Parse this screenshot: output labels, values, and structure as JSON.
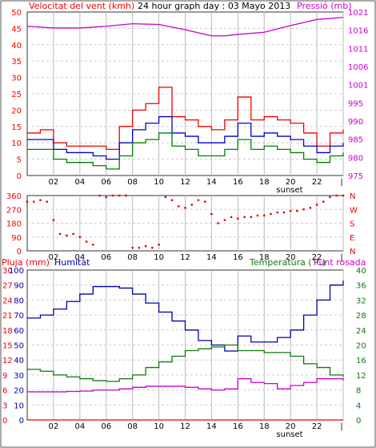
{
  "header": {
    "wind_label": "Velocitat del vent (kmh)",
    "title": "24 hour graph day : 03 Mayo 2013",
    "pressure_label": "Pressió (mb)"
  },
  "lower_header": {
    "rain_label": "Pluja (mm)",
    "humidity_label": "Humitat",
    "temp_label": "Temperatura (°C)",
    "dew_label": "Punt rosada"
  },
  "colors": {
    "wind_gust": "#ee0000",
    "wind_avg": "#0000cc",
    "wind_min": "#008000",
    "pressure": "#cc00cc",
    "direction": "#dd0000",
    "humidity": "#0000aa",
    "temperature": "#117711",
    "dewpoint": "#cc00cc",
    "rain": "#ee0000"
  },
  "chart_data": [
    {
      "type": "line",
      "x_ticks": [
        "02",
        "04",
        "06",
        "08",
        "10",
        "12",
        "14",
        "16",
        "18",
        "20",
        "22",
        "|"
      ],
      "x_annotation": "sunset",
      "left_axis": {
        "range": [
          0,
          50
        ],
        "ticks": [
          "0",
          "5",
          "10",
          "15",
          "20",
          "25",
          "30",
          "35",
          "40",
          "45",
          "50"
        ]
      },
      "right_axis": {
        "range": [
          975,
          1021
        ],
        "ticks": [
          "975",
          "980",
          "985",
          "990",
          "995",
          "1001",
          "1006",
          "1011",
          "1016",
          "1021"
        ]
      },
      "series": [
        {
          "key": "gust",
          "axis": "left",
          "hours": [
            0,
            1,
            2,
            3,
            4,
            5,
            6,
            7,
            8,
            9,
            10,
            11,
            12,
            13,
            14,
            15,
            16,
            17,
            18,
            19,
            20,
            21,
            22,
            23,
            24
          ],
          "values": [
            13,
            14,
            10,
            9,
            9,
            9,
            8,
            15,
            20,
            22,
            27,
            18,
            17,
            15,
            14,
            17,
            24,
            17,
            18,
            17,
            16,
            13,
            9,
            13,
            14
          ]
        },
        {
          "key": "avg",
          "axis": "left",
          "hours": [
            0,
            1,
            2,
            3,
            4,
            5,
            6,
            7,
            8,
            9,
            10,
            11,
            12,
            13,
            14,
            15,
            16,
            17,
            18,
            19,
            20,
            21,
            22,
            23,
            24
          ],
          "values": [
            11,
            11,
            8,
            7,
            7,
            6,
            5,
            10,
            14,
            16,
            18,
            13,
            12,
            10,
            10,
            12,
            16,
            12,
            13,
            12,
            11,
            9,
            7,
            9,
            10
          ]
        },
        {
          "key": "min",
          "axis": "left",
          "hours": [
            0,
            1,
            2,
            3,
            4,
            5,
            6,
            7,
            8,
            9,
            10,
            11,
            12,
            13,
            14,
            15,
            16,
            17,
            18,
            19,
            20,
            21,
            22,
            23,
            24
          ],
          "values": [
            8,
            8,
            5,
            4,
            4,
            3,
            2,
            6,
            10,
            11,
            13,
            9,
            8,
            6,
            6,
            8,
            11,
            8,
            9,
            8,
            7,
            5,
            4,
            6,
            7
          ]
        },
        {
          "key": "pressure",
          "axis": "right",
          "hours": [
            0,
            2,
            4,
            6,
            8,
            10,
            12,
            14,
            15,
            16,
            18,
            20,
            22,
            24
          ],
          "values": [
            1017,
            1016.5,
            1016.5,
            1017,
            1017.7,
            1017.5,
            1016,
            1014.3,
            1014.3,
            1014.7,
            1015.3,
            1017.2,
            1018.9,
            1019.5
          ]
        }
      ]
    },
    {
      "type": "scatter",
      "x_ticks": [
        "02",
        "04",
        "06",
        "08",
        "10",
        "12",
        "14",
        "16",
        "18",
        "20",
        "22",
        "|"
      ],
      "left_axis": {
        "range": [
          0,
          360
        ],
        "ticks": [
          "0",
          "90",
          "180",
          "270",
          "360"
        ]
      },
      "right_labels": [
        "N",
        "E",
        "S",
        "W",
        "N"
      ],
      "points": [
        [
          0,
          320
        ],
        [
          0.5,
          320
        ],
        [
          1,
          330
        ],
        [
          1.5,
          320
        ],
        [
          2,
          200
        ],
        [
          2.5,
          110
        ],
        [
          3,
          100
        ],
        [
          3.5,
          110
        ],
        [
          4,
          90
        ],
        [
          4.5,
          60
        ],
        [
          5,
          40
        ],
        [
          5.5,
          360
        ],
        [
          6,
          350
        ],
        [
          6.5,
          360
        ],
        [
          7,
          360
        ],
        [
          7.5,
          360
        ],
        [
          8,
          20
        ],
        [
          8.5,
          20
        ],
        [
          9,
          30
        ],
        [
          9.5,
          20
        ],
        [
          10,
          40
        ],
        [
          10.5,
          350
        ],
        [
          11,
          330
        ],
        [
          11.5,
          290
        ],
        [
          12,
          280
        ],
        [
          12.5,
          300
        ],
        [
          13,
          330
        ],
        [
          13.5,
          320
        ],
        [
          14,
          240
        ],
        [
          14.5,
          180
        ],
        [
          15,
          200
        ],
        [
          15.5,
          220
        ],
        [
          16,
          210
        ],
        [
          16.5,
          220
        ],
        [
          17,
          220
        ],
        [
          17.5,
          230
        ],
        [
          18,
          230
        ],
        [
          18.5,
          240
        ],
        [
          19,
          250
        ],
        [
          19.5,
          250
        ],
        [
          20,
          260
        ],
        [
          20.5,
          260
        ],
        [
          21,
          270
        ],
        [
          21.5,
          280
        ],
        [
          22,
          300
        ],
        [
          22.5,
          320
        ],
        [
          23,
          350
        ],
        [
          23.5,
          360
        ],
        [
          24,
          360
        ]
      ]
    },
    {
      "type": "line",
      "x_ticks": [
        "02",
        "04",
        "06",
        "08",
        "10",
        "12",
        "14",
        "16",
        "18",
        "20",
        "22",
        "|"
      ],
      "x_annotation": "sunset",
      "rain_axis": {
        "range": [
          0,
          30
        ],
        "ticks": [
          "0",
          "3",
          "6",
          "9",
          "12",
          "15",
          "18",
          "21",
          "24",
          "27",
          "30"
        ]
      },
      "humidity_axis": {
        "range": [
          0,
          100
        ],
        "ticks": [
          "0",
          "10",
          "20",
          "30",
          "40",
          "50",
          "60",
          "70",
          "80",
          "90",
          "100"
        ]
      },
      "temp_axis": {
        "range": [
          0,
          40
        ],
        "ticks": [
          "0",
          "4",
          "8",
          "12",
          "16",
          "20",
          "24",
          "28",
          "32",
          "36",
          "40"
        ]
      },
      "series": [
        {
          "key": "humidity",
          "axis": "humidity",
          "hours": [
            0,
            1,
            2,
            3,
            4,
            5,
            6,
            7,
            8,
            9,
            10,
            11,
            12,
            13,
            14,
            15,
            16,
            17,
            18,
            19,
            20,
            21,
            22,
            23,
            24
          ],
          "values": [
            68,
            70,
            74,
            79,
            84,
            89,
            89,
            88,
            84,
            78,
            72,
            66,
            60,
            53,
            50,
            46,
            56,
            52,
            52,
            55,
            60,
            70,
            80,
            90,
            93
          ]
        },
        {
          "key": "temperature",
          "axis": "temp",
          "hours": [
            0,
            1,
            2,
            3,
            4,
            5,
            6,
            7,
            8,
            9,
            10,
            11,
            12,
            13,
            14,
            15,
            16,
            17,
            18,
            19,
            20,
            21,
            22,
            23,
            24
          ],
          "values": [
            13.5,
            13,
            12,
            11.5,
            11,
            10.5,
            10.3,
            11,
            12,
            14,
            15.5,
            17,
            18.5,
            19,
            19.5,
            20,
            18.5,
            18.5,
            18,
            18,
            17,
            15,
            14,
            12,
            11.5
          ]
        },
        {
          "key": "dewpoint",
          "axis": "temp",
          "hours": [
            0,
            1,
            2,
            3,
            4,
            5,
            6,
            7,
            8,
            9,
            10,
            11,
            12,
            13,
            14,
            15,
            16,
            17,
            18,
            19,
            20,
            21,
            22,
            23,
            24
          ],
          "values": [
            7.5,
            7.5,
            7.5,
            7.6,
            7.7,
            8,
            8,
            8.3,
            8.7,
            9,
            9,
            9,
            8.7,
            8.3,
            8,
            8.3,
            11,
            10,
            9.7,
            8.3,
            9.2,
            10,
            11,
            11,
            10.5
          ]
        },
        {
          "key": "rain",
          "axis": "rain",
          "hours": [
            0,
            24
          ],
          "values": [
            0,
            0
          ]
        }
      ]
    }
  ]
}
